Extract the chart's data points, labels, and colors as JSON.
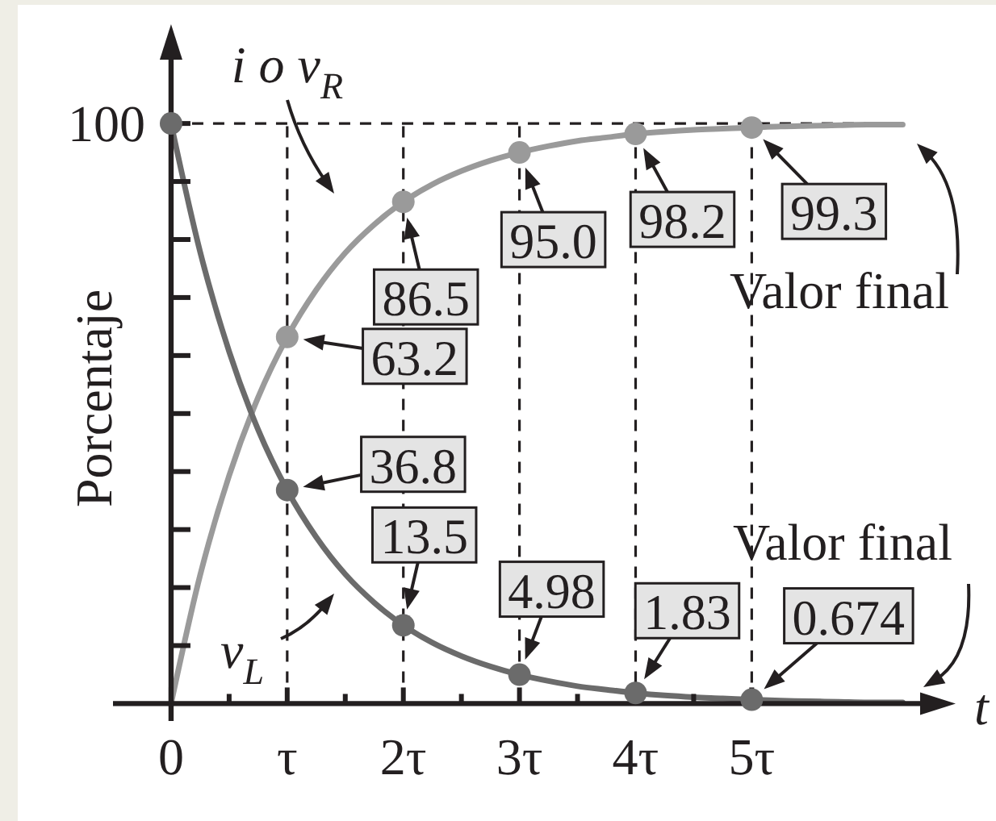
{
  "chart_data": {
    "type": "line",
    "xlabel": "t",
    "ylabel": "Porcentaje",
    "xlim": [
      -0.5,
      6.45
    ],
    "ylim": [
      -3,
      111
    ],
    "tick_labels": "x",
    "xticks": [
      0,
      {
        "value": 0.5,
        "label": null
      },
      {
        "value": 1,
        "label": "τ"
      },
      {
        "value": 1.5,
        "label": null
      },
      {
        "value": 2,
        "label": "2τ"
      },
      {
        "value": 2.5,
        "label": null
      },
      {
        "value": 3,
        "label": "3τ"
      },
      {
        "value": 3.5,
        "label": null
      },
      {
        "value": 4,
        "label": "4τ"
      },
      {
        "value": 4.5,
        "label": null
      },
      {
        "value": 5,
        "label": "5τ"
      }
    ],
    "yticks": [
      {
        "value": 10,
        "label": null
      },
      {
        "value": 20,
        "label": null
      },
      {
        "value": 30,
        "label": null
      },
      {
        "value": 40,
        "label": null
      },
      {
        "value": 50,
        "label": null
      },
      {
        "value": 60,
        "label": null
      },
      {
        "value": 70,
        "label": null
      },
      {
        "value": 80,
        "label": null
      },
      {
        "value": 90,
        "label": null
      },
      {
        "value": 100,
        "label": null
      }
    ],
    "ref_lines": [
      {
        "axis": "y",
        "value": 100,
        "label": "100",
        "line_style": "dashed"
      },
      {
        "axis": "x",
        "value": 1,
        "line_style": "dashed"
      },
      {
        "axis": "x",
        "value": 2,
        "line_style": "dashed"
      },
      {
        "axis": "x",
        "value": 3,
        "line_style": "dashed"
      },
      {
        "axis": "x",
        "value": 4,
        "line_style": "dashed"
      },
      {
        "axis": "x",
        "value": 5,
        "line_style": "dashed"
      }
    ],
    "series": [
      {
        "type": "line",
        "color": "#9a9a9a",
        "marker": "none",
        "x": [
          0,
          0.25,
          0.5,
          0.75,
          1,
          1.25,
          1.5,
          1.75,
          2,
          2.25,
          2.5,
          2.75,
          3,
          3.25,
          3.5,
          3.75,
          4,
          4.25,
          4.5,
          4.75,
          5,
          5.25,
          5.5,
          5.75,
          6,
          6.3
        ],
        "values": [
          0,
          22.1,
          39.3,
          52.8,
          63.2,
          71.3,
          77.7,
          82.6,
          86.5,
          89.5,
          91.8,
          93.6,
          95.0,
          96.1,
          97.0,
          97.6,
          98.2,
          98.6,
          98.9,
          99.1,
          99.3,
          99.5,
          99.6,
          99.7,
          99.8,
          99.8
        ]
      },
      {
        "type": "line",
        "color": "#6b6b6b",
        "marker": "none",
        "x": [
          0,
          0.25,
          0.5,
          0.75,
          1,
          1.25,
          1.5,
          1.75,
          2,
          2.25,
          2.5,
          2.75,
          3,
          3.25,
          3.5,
          3.75,
          4,
          4.25,
          4.5,
          4.75,
          5,
          5.25,
          5.5,
          5.75,
          6,
          6.3
        ],
        "values": [
          100,
          77.9,
          60.7,
          47.2,
          36.8,
          28.7,
          22.3,
          17.4,
          13.5,
          10.5,
          8.2,
          6.4,
          4.98,
          3.9,
          3.0,
          2.4,
          1.83,
          1.4,
          1.1,
          0.9,
          0.674,
          0.5,
          0.4,
          0.3,
          0.2,
          0.2
        ]
      },
      {
        "type": "scatter",
        "color": "#9a9a9a",
        "marker": "circle",
        "x": [
          1,
          2,
          3,
          4,
          5
        ],
        "values": [
          63.2,
          86.5,
          95.0,
          98.2,
          99.3
        ],
        "value_labels": [
          "63.2",
          "86.5",
          "95.0",
          "98.2",
          "99.3"
        ]
      },
      {
        "type": "scatter",
        "color": "#6b6b6b",
        "marker": "circle",
        "x": [
          0,
          1,
          2,
          3,
          4,
          5
        ],
        "values": [
          100,
          36.8,
          13.5,
          4.98,
          1.83,
          0.674
        ],
        "value_labels": [
          null,
          "36.8",
          "13.5",
          "4.98",
          "1.83",
          "0.674"
        ]
      }
    ],
    "annotations": [
      "i o v$_{R}$",
      "Valor final",
      "v$_{L}$",
      "Valor final"
    ]
  }
}
